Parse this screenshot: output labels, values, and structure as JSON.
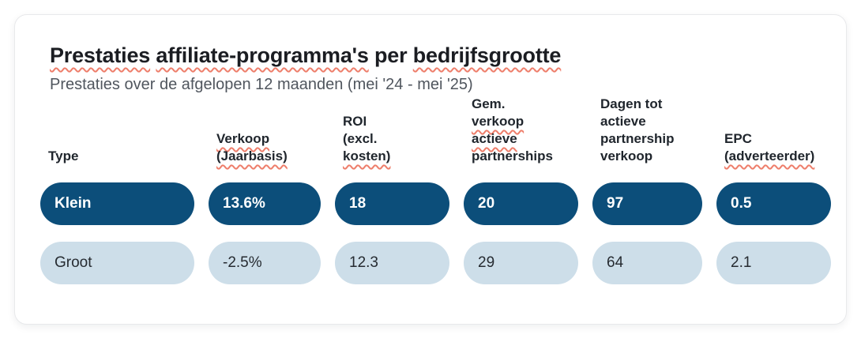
{
  "title": {
    "full": "Prestaties affiliate-programma's per bedrijfsgrootte",
    "words": [
      {
        "text": "Prestaties",
        "misspelled": true
      },
      {
        "text": "affiliate-programma's",
        "misspelled": true
      },
      {
        "text": "per",
        "misspelled": false
      },
      {
        "text": "bedrijfsgrootte",
        "misspelled": true
      }
    ]
  },
  "subtitle": "Prestaties over de afgelopen 12 maanden (mei '24 - mei '25)",
  "table": {
    "headers": [
      {
        "label": "Type",
        "lines": [
          {
            "text": "Type",
            "misspelled": false
          }
        ]
      },
      {
        "label": "Verkoop (Jaarbasis)",
        "lines": [
          {
            "text": "Verkoop",
            "misspelled": true
          },
          {
            "text": "(Jaarbasis)",
            "misspelled": true
          }
        ]
      },
      {
        "label": "ROI (excl. kosten)",
        "lines": [
          {
            "text": "ROI",
            "misspelled": false
          },
          {
            "text": "(excl.",
            "misspelled": false
          },
          {
            "text": "kosten)",
            "misspelled": true
          }
        ]
      },
      {
        "label": "Gem. verkoop actieve partnerships",
        "lines": [
          {
            "text": "Gem.",
            "misspelled": false
          },
          {
            "text": "verkoop",
            "misspelled": true
          },
          {
            "text": "actieve",
            "misspelled": true
          },
          {
            "text": "partnerships",
            "misspelled": false
          }
        ]
      },
      {
        "label": "Dagen tot actieve partnership verkoop",
        "lines": [
          {
            "text": "Dagen tot",
            "misspelled": false
          },
          {
            "text": "actieve",
            "misspelled": false
          },
          {
            "text": "partnership",
            "misspelled": false
          },
          {
            "text": "verkoop",
            "misspelled": false
          }
        ]
      },
      {
        "label": "EPC (adverteerder)",
        "lines": [
          {
            "text": "EPC",
            "misspelled": false
          },
          {
            "text": "(adverteerder)",
            "misspelled": true
          }
        ]
      }
    ],
    "rows": [
      {
        "type": "Klein",
        "variant": "dark",
        "values": [
          "13.6%",
          "18",
          "20",
          "97",
          "0.5"
        ]
      },
      {
        "type": "Groot",
        "variant": "light",
        "values": [
          "-2.5%",
          "12.3",
          "29",
          "64",
          "2.1"
        ]
      }
    ]
  },
  "chart_data": {
    "type": "table",
    "title": "Prestaties affiliate-programma's per bedrijfsgrootte",
    "subtitle": "Prestaties over de afgelopen 12 maanden (mei '24 - mei '25)",
    "columns": [
      "Type",
      "Verkoop (Jaarbasis)",
      "ROI (excl. kosten)",
      "Gem. verkoop actieve partnerships",
      "Dagen tot actieve partnership verkoop",
      "EPC (adverteerder)"
    ],
    "rows": [
      [
        "Klein",
        "13.6%",
        "18",
        "20",
        "97",
        "0.5"
      ],
      [
        "Groot",
        "-2.5%",
        "12.3",
        "29",
        "64",
        "2.1"
      ]
    ]
  },
  "colors": {
    "highlight_row_pill": "#0c4e7a",
    "muted_row_pill": "#cddee9",
    "spellcheck_underline": "#ee7e6b",
    "title_text": "#1b1d22",
    "subtitle_text": "#50565e",
    "card_border": "#e8e9eb"
  }
}
